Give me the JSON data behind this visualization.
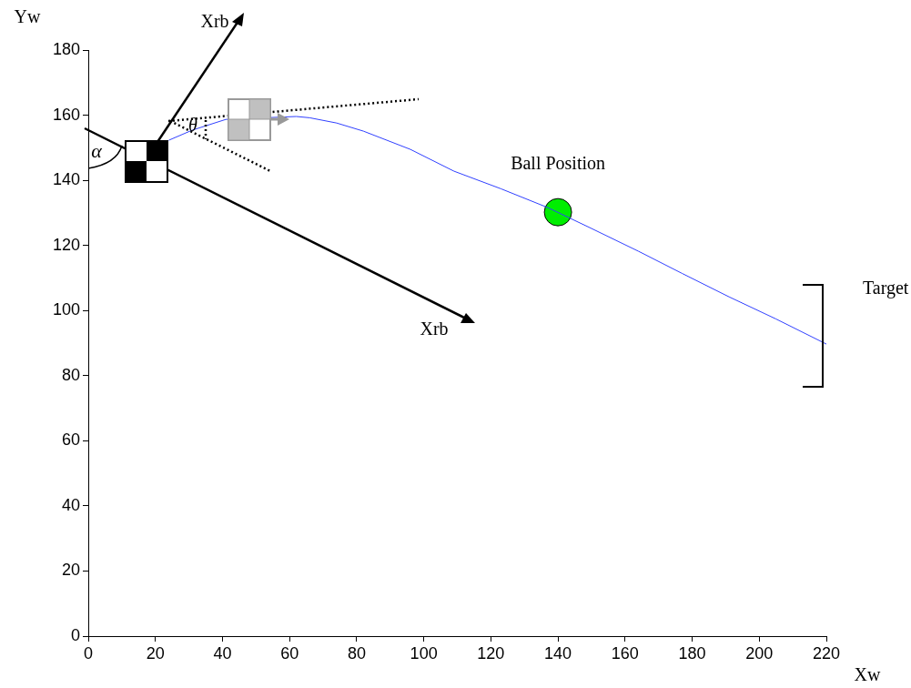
{
  "chart_data": {
    "type": "line",
    "xlabel": "Xw",
    "ylabel": "Yw",
    "xlim": [
      0,
      220
    ],
    "xticks": [
      0,
      20,
      40,
      60,
      80,
      100,
      120,
      140,
      160,
      180,
      200,
      220
    ],
    "ylim": [
      0,
      180
    ],
    "yticks": [
      0,
      20,
      40,
      60,
      80,
      100,
      120,
      140,
      160,
      180
    ],
    "grid": false,
    "legend": false,
    "series": [
      {
        "color": "#3040ff",
        "marker": "none",
        "x": [
          24,
          31,
          41,
          62,
          66,
          74,
          82,
          96,
          109,
          123,
          137,
          150,
          164,
          177,
          191,
          205,
          220
        ],
        "values": [
          152.3,
          155.4,
          158.7,
          159.6,
          159.2,
          157.6,
          155.1,
          149.5,
          142.8,
          137.4,
          131.6,
          125.2,
          118.2,
          111.4,
          104.2,
          97.4,
          89.7
        ]
      },
      {
        "type": "scatter",
        "color": "#00ee00",
        "marker": "circle",
        "x": [
          140
        ],
        "values": [
          130.2
        ]
      }
    ],
    "annotations": [
      {
        "text": "Ball Position",
        "x": 140,
        "y": 130.2
      },
      "Xrb",
      "Xrb",
      "α",
      "θ",
      "Target"
    ]
  }
}
